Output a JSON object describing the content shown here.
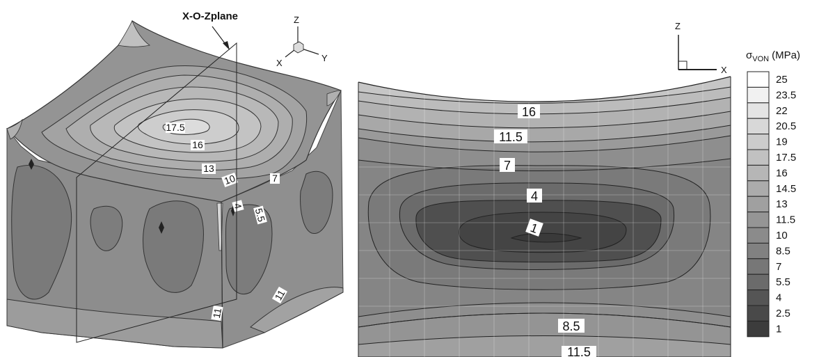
{
  "plane_label": "X-O-Zplane",
  "axes_3d": {
    "z": "Z",
    "x": "X",
    "y": "Y"
  },
  "axes_2d": {
    "z": "Z",
    "x": "X"
  },
  "legend": {
    "title_symbol": "σ",
    "title_subscript": "VON",
    "title_unit": "(MPa)",
    "levels": [
      "25",
      "23.5",
      "22",
      "20.5",
      "19",
      "17.5",
      "16",
      "14.5",
      "13",
      "11.5",
      "10",
      "8.5",
      "7",
      "5.5",
      "4",
      "2.5",
      "1"
    ],
    "colors": [
      "#ffffff",
      "#f1f1f1",
      "#e4e4e4",
      "#d8d8d8",
      "#cccccc",
      "#c1c1c1",
      "#b6b6b6",
      "#ababab",
      "#a0a0a0",
      "#959595",
      "#8b8b8b",
      "#818181",
      "#777777",
      "#6b6b6b",
      "#555555",
      "#494949",
      "#3c3c3c"
    ]
  },
  "cube_labels": {
    "top": [
      "17.5",
      "16",
      "13",
      "10",
      "7"
    ],
    "side": [
      "4",
      "5.5",
      "11",
      "11"
    ]
  },
  "plane_labels": [
    "16",
    "11.5",
    "7",
    "4",
    "1",
    "8.5",
    "11.5"
  ]
}
